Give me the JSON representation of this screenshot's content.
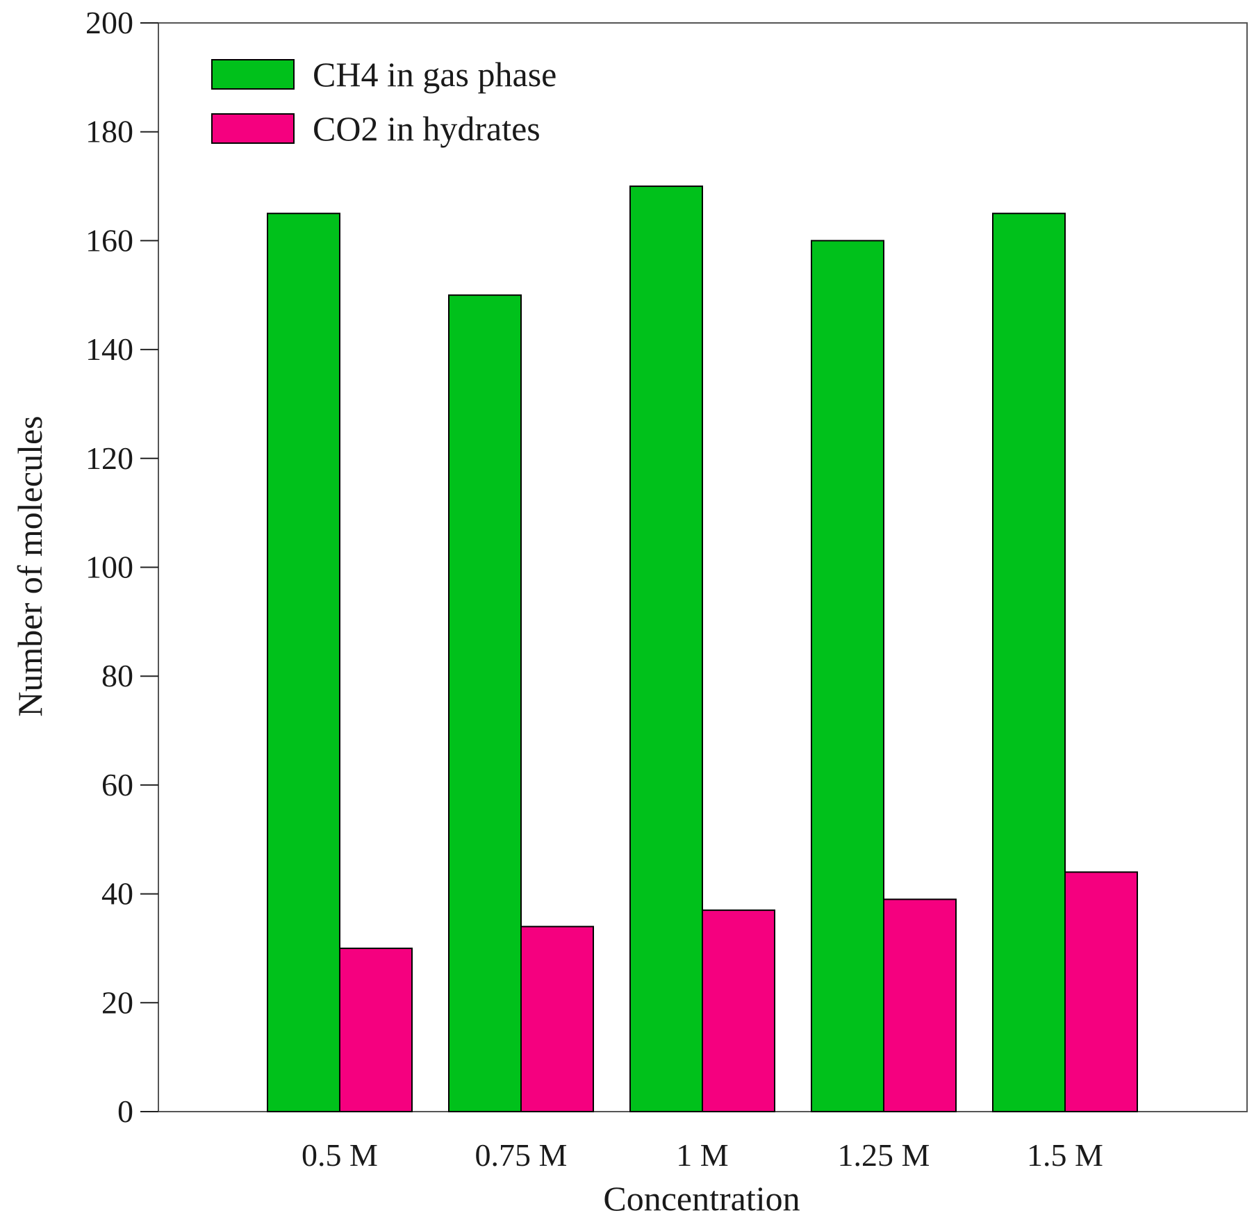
{
  "chart_data": {
    "type": "bar",
    "title": "",
    "xlabel": "Concentration",
    "ylabel": "Number of molecules",
    "categories": [
      "0.5 M",
      "0.75 M",
      "1 M",
      "1.25 M",
      "1.5 M"
    ],
    "ylim": [
      0,
      200
    ],
    "yticks": [
      0,
      20,
      40,
      60,
      80,
      100,
      120,
      140,
      160,
      180,
      200
    ],
    "grid": false,
    "legend_position": "top-left",
    "series": [
      {
        "name": "CH4 in gas phase",
        "color": "#00c11b",
        "values": [
          165,
          150,
          170,
          160,
          165
        ]
      },
      {
        "name": "CO2 in hydrates",
        "color": "#f5007f",
        "values": [
          30,
          34,
          37,
          39,
          44
        ]
      }
    ]
  }
}
